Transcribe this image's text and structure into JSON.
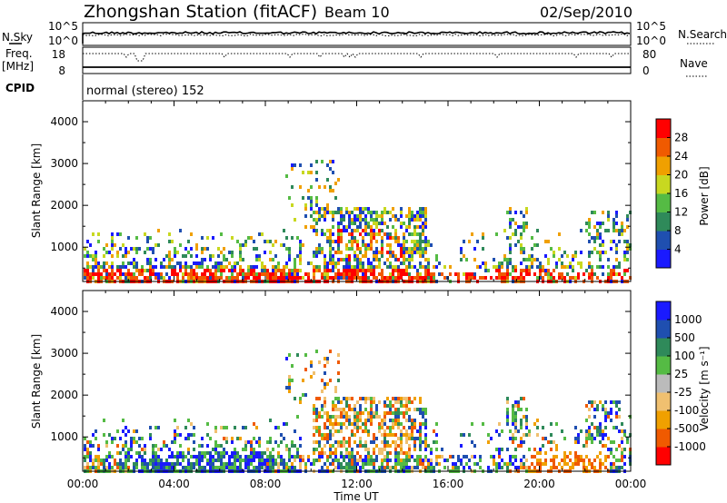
{
  "header": {
    "station": "Zhongshan Station (fitACF)",
    "beam": "Beam 10",
    "date": "02/Sep/2010"
  },
  "top_panels": {
    "nsky_label": "N.Sky",
    "nsearch_label": "N.Search",
    "nsky_ticks": [
      "10^5",
      "10^0"
    ],
    "nsearch_ticks": [
      "10^5",
      "10^0"
    ],
    "freq_label_1": "Freq.",
    "freq_label_2": "[MHz]",
    "freq_ticks": [
      "18",
      "8"
    ],
    "nave_label": "Nave",
    "nave_ticks": [
      "80",
      "0"
    ],
    "cpid_label": "CPID",
    "cpid_text": "normal (stereo) 152"
  },
  "colors": {
    "power_scale": [
      "#1a1aff",
      "#1f4fb0",
      "#2f8a5a",
      "#55bb44",
      "#c8d820",
      "#f0a000",
      "#f05a00",
      "#ff0000"
    ],
    "velocity_scale": [
      "#ff0000",
      "#f05a00",
      "#f0a000",
      "#f0c070",
      "#bbbbbb",
      "#55bb44",
      "#2f8a5a",
      "#1f4fb0",
      "#1a1aff"
    ]
  },
  "chart_data": [
    {
      "type": "heatmap",
      "quantity": "Power",
      "ylabel": "Slant Range [km]",
      "ylim": [
        180,
        4500
      ],
      "yticks": [
        "1000",
        "2000",
        "3000",
        "4000"
      ],
      "colorbar_label": "Power [dB]",
      "colorbar_ticks": [
        "4",
        "8",
        "12",
        "16",
        "20",
        "24",
        "28"
      ],
      "colorbar_range": [
        0,
        32
      ]
    },
    {
      "type": "heatmap",
      "quantity": "Velocity",
      "xlabel": "Time UT",
      "xticks": [
        "00:00",
        "04:00",
        "08:00",
        "12:00",
        "16:00",
        "20:00",
        "00:00"
      ],
      "xlim": [
        0,
        24
      ],
      "ylabel": "Slant Range [km]",
      "ylim": [
        180,
        4500
      ],
      "yticks": [
        "1000",
        "2000",
        "3000",
        "4000"
      ],
      "colorbar_label": "Velocity [m s⁻¹]",
      "colorbar_ticks": [
        "-1000",
        "-500",
        "-100",
        "-25",
        "25",
        "100",
        "500",
        "1000"
      ]
    }
  ]
}
